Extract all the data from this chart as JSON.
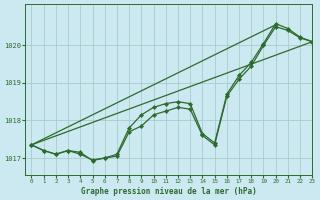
{
  "title": "Graphe pression niveau de la mer (hPa)",
  "bg_color": "#cce8f0",
  "grid_color": "#aacccc",
  "line_color": "#2d6b2d",
  "xlim": [
    -0.5,
    23
  ],
  "ylim": [
    1016.55,
    1021.1
  ],
  "yticks": [
    1017,
    1018,
    1019,
    1020
  ],
  "xticks": [
    0,
    1,
    2,
    3,
    4,
    5,
    6,
    7,
    8,
    9,
    10,
    11,
    12,
    13,
    14,
    15,
    16,
    17,
    18,
    19,
    20,
    21,
    22,
    23
  ],
  "smooth_line1": [
    1017.35,
    1020.1
  ],
  "smooth_line1_x": [
    0,
    23
  ],
  "smooth_line2": [
    1017.35,
    1020.55
  ],
  "smooth_line2_x": [
    0,
    20
  ],
  "jagged_line1_x": [
    0,
    1,
    2,
    3,
    4,
    5,
    6,
    7,
    8,
    9,
    10,
    11,
    12,
    13,
    14,
    15,
    16,
    17,
    18,
    19,
    20,
    21,
    22,
    23
  ],
  "jagged_line1_y": [
    1017.35,
    1017.2,
    1017.1,
    1017.2,
    1017.1,
    1016.95,
    1017.0,
    1017.05,
    1017.7,
    1017.85,
    1018.15,
    1018.25,
    1018.35,
    1018.3,
    1017.6,
    1017.35,
    1018.65,
    1019.1,
    1019.45,
    1020.0,
    1020.5,
    1020.4,
    1020.2,
    1020.1
  ],
  "jagged_line2_x": [
    0,
    1,
    2,
    3,
    4,
    5,
    6,
    7,
    8,
    9,
    10,
    11,
    12,
    13,
    14,
    15,
    16,
    17,
    18,
    19,
    20,
    21,
    22,
    23
  ],
  "jagged_line2_y": [
    1017.35,
    1017.2,
    1017.1,
    1017.2,
    1017.15,
    1016.93,
    1017.0,
    1017.1,
    1017.8,
    1018.15,
    1018.35,
    1018.45,
    1018.5,
    1018.45,
    1017.65,
    1017.4,
    1018.7,
    1019.2,
    1019.55,
    1020.05,
    1020.58,
    1020.45,
    1020.22,
    1020.1
  ]
}
